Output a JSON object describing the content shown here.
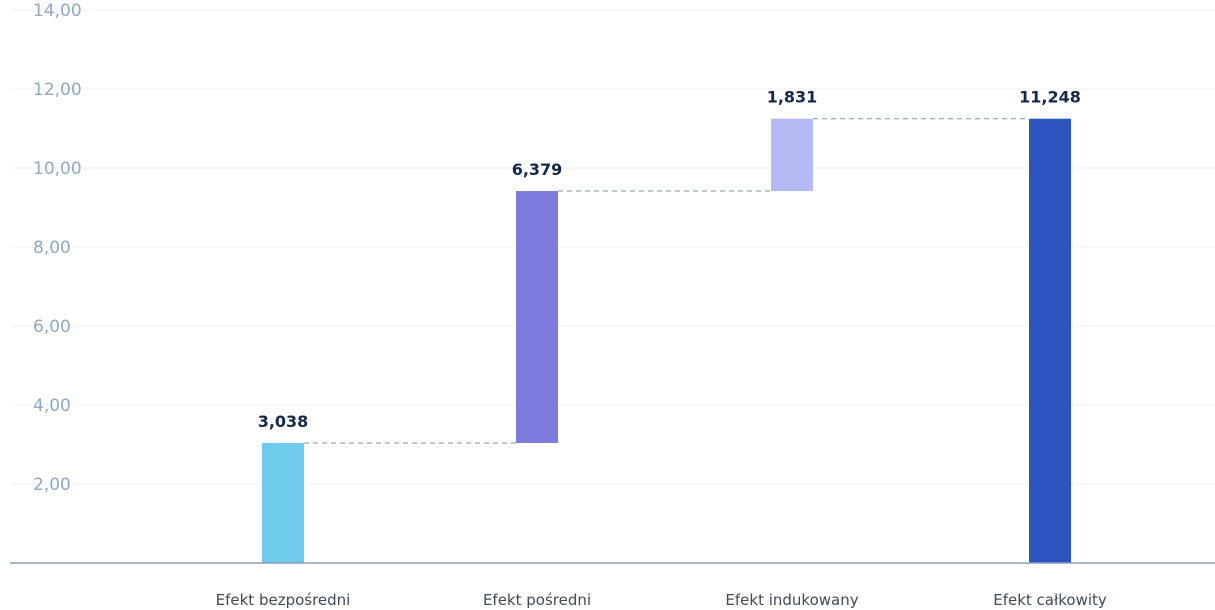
{
  "chart_data": {
    "type": "bar",
    "subtype": "waterfall",
    "categories": [
      "Efekt bezpośredni",
      "Efekt pośredni",
      "Efekt indukowany",
      "Efekt całkowity"
    ],
    "values": [
      3.038,
      6.379,
      1.831,
      11.248
    ],
    "value_labels": [
      "3,038",
      "6,379",
      "1,831",
      "11,248"
    ],
    "bar_kinds": [
      "increment",
      "increment",
      "increment",
      "total"
    ],
    "ylim": [
      0,
      14
    ],
    "yticks": [
      2,
      4,
      6,
      8,
      10,
      12,
      14
    ],
    "ytick_labels": [
      "2,00",
      "4,00",
      "6,00",
      "8,00",
      "10,00",
      "12,00",
      "14,00"
    ],
    "title": "",
    "xlabel": "",
    "ylabel": "",
    "grid": true,
    "connectors": true,
    "colors": [
      "#6ecbeb",
      "#7d7bdd",
      "#b4bbf2",
      "#2d55c2"
    ],
    "grid_color": "#eef1f5",
    "axis_color": "#8aa0b8",
    "connector_color": "#7f93ad"
  }
}
